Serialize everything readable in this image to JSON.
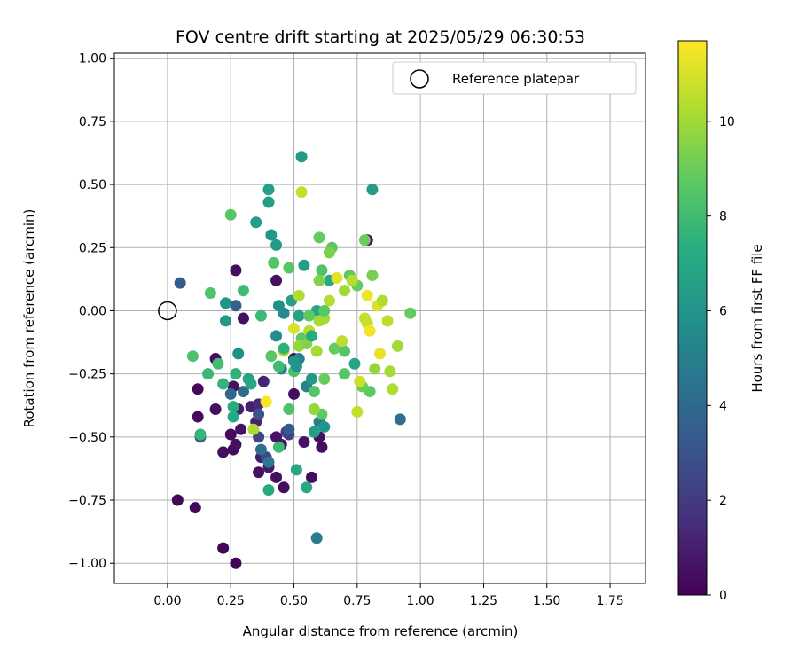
{
  "chart_data": {
    "type": "scatter",
    "title": "FOV centre drift starting at 2025/05/29 06:30:53",
    "xlabel": "Angular distance from reference (arcmin)",
    "ylabel": "Rotation from reference (arcmin)",
    "xlim": [
      -0.21,
      1.89
    ],
    "ylim": [
      -1.08,
      1.02
    ],
    "x_ticks": [
      0.0,
      0.25,
      0.5,
      0.75,
      1.0,
      1.25,
      1.5,
      1.75
    ],
    "x_tick_labels": [
      "0.00",
      "0.25",
      "0.50",
      "0.75",
      "1.00",
      "1.25",
      "1.50",
      "1.75"
    ],
    "y_ticks": [
      -1.0,
      -0.75,
      -0.5,
      -0.25,
      0.0,
      0.25,
      0.5,
      0.75,
      1.0
    ],
    "y_tick_labels": [
      "−1.00",
      "−0.75",
      "−0.50",
      "−0.25",
      "0.00",
      "0.25",
      "0.50",
      "0.75",
      "1.00"
    ],
    "grid": true,
    "legend": {
      "placement": "top-right",
      "entries": [
        {
          "label": "Reference platepar",
          "marker": "open-circle"
        }
      ]
    },
    "reference_point": {
      "x": 0.0,
      "y": 0.0
    },
    "colorbar": {
      "label": "Hours from first FF file",
      "colormap": "viridis",
      "range": [
        0,
        11.7
      ],
      "ticks": [
        0,
        2,
        4,
        6,
        8,
        10
      ],
      "tick_labels": [
        "0",
        "2",
        "4",
        "6",
        "8",
        "10"
      ]
    },
    "points": [
      {
        "x": 0.04,
        "y": -0.75,
        "hours": 0.2
      },
      {
        "x": 0.11,
        "y": -0.78,
        "hours": 0.2
      },
      {
        "x": 0.22,
        "y": -0.94,
        "hours": 0.2
      },
      {
        "x": 0.27,
        "y": -1.0,
        "hours": 0.1
      },
      {
        "x": 0.12,
        "y": -0.31,
        "hours": 0.2
      },
      {
        "x": 0.12,
        "y": -0.42,
        "hours": 0.3
      },
      {
        "x": 0.19,
        "y": -0.19,
        "hours": 0.4
      },
      {
        "x": 0.19,
        "y": -0.39,
        "hours": 0.5
      },
      {
        "x": 0.22,
        "y": -0.56,
        "hours": 0.4
      },
      {
        "x": 0.25,
        "y": -0.49,
        "hours": 0.3
      },
      {
        "x": 0.26,
        "y": -0.55,
        "hours": 0.3
      },
      {
        "x": 0.27,
        "y": -0.53,
        "hours": 0.5
      },
      {
        "x": 0.26,
        "y": -0.3,
        "hours": 0.5
      },
      {
        "x": 0.27,
        "y": 0.16,
        "hours": 0.4
      },
      {
        "x": 0.3,
        "y": -0.03,
        "hours": 0.5
      },
      {
        "x": 0.29,
        "y": -0.47,
        "hours": 0.6
      },
      {
        "x": 0.36,
        "y": -0.64,
        "hours": 0.5
      },
      {
        "x": 0.43,
        "y": 0.12,
        "hours": 0.6
      },
      {
        "x": 0.46,
        "y": -0.7,
        "hours": 0.4
      },
      {
        "x": 0.43,
        "y": -0.66,
        "hours": 0.5
      },
      {
        "x": 0.43,
        "y": -0.5,
        "hours": 0.6
      },
      {
        "x": 0.45,
        "y": -0.53,
        "hours": 0.7
      },
      {
        "x": 0.5,
        "y": -0.33,
        "hours": 0.4
      },
      {
        "x": 0.5,
        "y": -0.19,
        "hours": 0.5
      },
      {
        "x": 0.57,
        "y": -0.66,
        "hours": 0.4
      },
      {
        "x": 0.6,
        "y": -0.5,
        "hours": 0.5
      },
      {
        "x": 0.61,
        "y": -0.54,
        "hours": 0.4
      },
      {
        "x": 0.54,
        "y": -0.52,
        "hours": 0.6
      },
      {
        "x": 0.79,
        "y": 0.28,
        "hours": 0.3
      },
      {
        "x": 0.4,
        "y": -0.62,
        "hours": 0.8
      },
      {
        "x": 0.37,
        "y": -0.58,
        "hours": 0.9
      },
      {
        "x": 0.33,
        "y": -0.38,
        "hours": 1.0
      },
      {
        "x": 0.35,
        "y": -0.44,
        "hours": 1.1
      },
      {
        "x": 0.38,
        "y": -0.28,
        "hours": 1.2
      },
      {
        "x": 0.28,
        "y": -0.39,
        "hours": 1.0
      },
      {
        "x": 0.36,
        "y": -0.37,
        "hours": 1.4
      },
      {
        "x": 0.47,
        "y": -0.48,
        "hours": 2.0
      },
      {
        "x": 0.48,
        "y": -0.49,
        "hours": 2.3
      },
      {
        "x": 0.36,
        "y": -0.5,
        "hours": 2.4
      },
      {
        "x": 0.39,
        "y": -0.58,
        "hours": 2.6
      },
      {
        "x": 0.36,
        "y": -0.41,
        "hours": 3.0
      },
      {
        "x": 0.05,
        "y": 0.11,
        "hours": 3.4
      },
      {
        "x": 0.13,
        "y": -0.5,
        "hours": 3.5
      },
      {
        "x": 0.27,
        "y": 0.02,
        "hours": 3.6
      },
      {
        "x": 0.25,
        "y": -0.33,
        "hours": 3.8
      },
      {
        "x": 0.3,
        "y": -0.32,
        "hours": 4.0
      },
      {
        "x": 0.37,
        "y": -0.55,
        "hours": 4.2
      },
      {
        "x": 0.4,
        "y": -0.6,
        "hours": 4.6
      },
      {
        "x": 0.48,
        "y": -0.47,
        "hours": 3.3
      },
      {
        "x": 0.92,
        "y": -0.43,
        "hours": 4.3
      },
      {
        "x": 0.59,
        "y": -0.9,
        "hours": 4.9
      },
      {
        "x": 0.6,
        "y": -0.44,
        "hours": 5.0
      },
      {
        "x": 0.55,
        "y": -0.3,
        "hours": 5.2
      },
      {
        "x": 0.52,
        "y": -0.19,
        "hours": 5.1
      },
      {
        "x": 0.45,
        "y": -0.23,
        "hours": 5.4
      },
      {
        "x": 0.43,
        "y": -0.1,
        "hours": 5.6
      },
      {
        "x": 0.44,
        "y": 0.02,
        "hours": 5.8
      },
      {
        "x": 0.46,
        "y": -0.01,
        "hours": 5.5
      },
      {
        "x": 0.5,
        "y": -0.2,
        "hours": 6.0
      },
      {
        "x": 0.53,
        "y": 0.61,
        "hours": 6.3
      },
      {
        "x": 0.81,
        "y": 0.48,
        "hours": 6.4
      },
      {
        "x": 0.4,
        "y": 0.48,
        "hours": 6.5
      },
      {
        "x": 0.4,
        "y": 0.43,
        "hours": 6.5
      },
      {
        "x": 0.35,
        "y": 0.35,
        "hours": 6.4
      },
      {
        "x": 0.41,
        "y": 0.3,
        "hours": 6.2
      },
      {
        "x": 0.43,
        "y": 0.26,
        "hours": 6.3
      },
      {
        "x": 0.54,
        "y": 0.18,
        "hours": 6.4
      },
      {
        "x": 0.49,
        "y": 0.04,
        "hours": 6.6
      },
      {
        "x": 0.52,
        "y": -0.02,
        "hours": 6.7
      },
      {
        "x": 0.59,
        "y": 0.0,
        "hours": 6.9
      },
      {
        "x": 0.64,
        "y": 0.12,
        "hours": 7.0
      },
      {
        "x": 0.74,
        "y": -0.21,
        "hours": 6.8
      },
      {
        "x": 0.57,
        "y": -0.27,
        "hours": 6.2
      },
      {
        "x": 0.62,
        "y": -0.46,
        "hours": 6.1
      },
      {
        "x": 0.58,
        "y": -0.48,
        "hours": 6.5
      },
      {
        "x": 0.51,
        "y": -0.63,
        "hours": 6.9
      },
      {
        "x": 0.55,
        "y": -0.7,
        "hours": 7.0
      },
      {
        "x": 0.4,
        "y": -0.71,
        "hours": 7.1
      },
      {
        "x": 0.28,
        "y": -0.17,
        "hours": 5.8
      },
      {
        "x": 0.23,
        "y": 0.03,
        "hours": 6.0
      },
      {
        "x": 0.23,
        "y": -0.04,
        "hours": 6.2
      },
      {
        "x": 0.32,
        "y": -0.27,
        "hours": 6.7
      },
      {
        "x": 0.33,
        "y": -0.29,
        "hours": 7.0
      },
      {
        "x": 0.27,
        "y": -0.25,
        "hours": 7.5
      },
      {
        "x": 0.26,
        "y": -0.38,
        "hours": 7.2
      },
      {
        "x": 0.22,
        "y": -0.29,
        "hours": 7.6
      },
      {
        "x": 0.26,
        "y": -0.42,
        "hours": 7.0
      },
      {
        "x": 0.3,
        "y": 0.08,
        "hours": 8.0
      },
      {
        "x": 0.16,
        "y": -0.25,
        "hours": 7.8
      },
      {
        "x": 0.37,
        "y": -0.02,
        "hours": 7.9
      },
      {
        "x": 0.44,
        "y": -0.54,
        "hours": 7.9
      },
      {
        "x": 0.13,
        "y": -0.49,
        "hours": 7.7
      },
      {
        "x": 0.1,
        "y": -0.18,
        "hours": 8.3
      },
      {
        "x": 0.2,
        "y": -0.21,
        "hours": 8.1
      },
      {
        "x": 0.17,
        "y": 0.07,
        "hours": 8.4
      },
      {
        "x": 0.25,
        "y": 0.38,
        "hours": 8.6
      },
      {
        "x": 0.42,
        "y": 0.19,
        "hours": 8.5
      },
      {
        "x": 0.48,
        "y": 0.17,
        "hours": 8.6
      },
      {
        "x": 0.41,
        "y": -0.18,
        "hours": 8.6
      },
      {
        "x": 0.44,
        "y": -0.22,
        "hours": 8.0
      },
      {
        "x": 0.48,
        "y": -0.39,
        "hours": 8.4
      },
      {
        "x": 0.5,
        "y": -0.24,
        "hours": 8.3
      },
      {
        "x": 0.53,
        "y": -0.11,
        "hours": 8.7
      },
      {
        "x": 0.56,
        "y": -0.02,
        "hours": 8.8
      },
      {
        "x": 0.6,
        "y": 0.29,
        "hours": 8.9
      },
      {
        "x": 0.61,
        "y": 0.16,
        "hours": 8.4
      },
      {
        "x": 0.65,
        "y": 0.25,
        "hours": 8.7
      },
      {
        "x": 0.64,
        "y": 0.23,
        "hours": 9.3
      },
      {
        "x": 0.66,
        "y": -0.15,
        "hours": 8.9
      },
      {
        "x": 0.7,
        "y": -0.16,
        "hours": 8.5
      },
      {
        "x": 0.72,
        "y": 0.14,
        "hours": 8.8
      },
      {
        "x": 0.75,
        "y": 0.1,
        "hours": 8.9
      },
      {
        "x": 0.78,
        "y": 0.28,
        "hours": 9.0
      },
      {
        "x": 0.81,
        "y": 0.14,
        "hours": 9.2
      },
      {
        "x": 0.96,
        "y": -0.01,
        "hours": 8.9
      },
      {
        "x": 0.58,
        "y": -0.32,
        "hours": 8.5
      },
      {
        "x": 0.61,
        "y": -0.41,
        "hours": 8.8
      },
      {
        "x": 0.62,
        "y": -0.27,
        "hours": 8.9
      },
      {
        "x": 0.7,
        "y": -0.25,
        "hours": 8.6
      },
      {
        "x": 0.8,
        "y": -0.32,
        "hours": 8.8
      },
      {
        "x": 0.77,
        "y": -0.3,
        "hours": 9.0
      },
      {
        "x": 0.82,
        "y": -0.23,
        "hours": 9.8
      },
      {
        "x": 0.88,
        "y": -0.24,
        "hours": 10.1
      },
      {
        "x": 0.89,
        "y": -0.31,
        "hours": 10.3
      },
      {
        "x": 0.91,
        "y": -0.14,
        "hours": 10.0
      },
      {
        "x": 0.75,
        "y": -0.4,
        "hours": 10.6
      },
      {
        "x": 0.76,
        "y": -0.28,
        "hours": 10.8
      },
      {
        "x": 0.58,
        "y": -0.39,
        "hours": 9.8
      },
      {
        "x": 0.59,
        "y": -0.16,
        "hours": 10.1
      },
      {
        "x": 0.6,
        "y": -0.04,
        "hours": 10.2
      },
      {
        "x": 0.62,
        "y": -0.03,
        "hours": 10.0
      },
      {
        "x": 0.64,
        "y": 0.04,
        "hours": 10.4
      },
      {
        "x": 0.69,
        "y": -0.12,
        "hours": 10.5
      },
      {
        "x": 0.7,
        "y": 0.08,
        "hours": 10.0
      },
      {
        "x": 0.73,
        "y": 0.12,
        "hours": 10.4
      },
      {
        "x": 0.78,
        "y": -0.03,
        "hours": 10.6
      },
      {
        "x": 0.79,
        "y": -0.05,
        "hours": 10.7
      },
      {
        "x": 0.83,
        "y": 0.02,
        "hours": 11.0
      },
      {
        "x": 0.85,
        "y": 0.04,
        "hours": 10.3
      },
      {
        "x": 0.87,
        "y": -0.04,
        "hours": 10.5
      },
      {
        "x": 0.84,
        "y": -0.17,
        "hours": 11.3
      },
      {
        "x": 0.8,
        "y": -0.08,
        "hours": 11.5
      },
      {
        "x": 0.79,
        "y": 0.06,
        "hours": 11.4
      },
      {
        "x": 0.67,
        "y": 0.13,
        "hours": 11.2
      },
      {
        "x": 0.53,
        "y": 0.47,
        "hours": 10.6
      },
      {
        "x": 0.52,
        "y": 0.06,
        "hours": 10.3
      },
      {
        "x": 0.5,
        "y": -0.07,
        "hours": 11.0
      },
      {
        "x": 0.56,
        "y": -0.08,
        "hours": 10.4
      },
      {
        "x": 0.52,
        "y": -0.14,
        "hours": 9.8
      },
      {
        "x": 0.55,
        "y": -0.13,
        "hours": 9.5
      },
      {
        "x": 0.46,
        "y": -0.16,
        "hours": 10.6
      },
      {
        "x": 0.39,
        "y": -0.36,
        "hours": 11.6
      },
      {
        "x": 0.34,
        "y": -0.47,
        "hours": 10.3
      },
      {
        "x": 0.46,
        "y": -0.15,
        "hours": 7.5
      },
      {
        "x": 0.57,
        "y": -0.1,
        "hours": 7.2
      },
      {
        "x": 0.51,
        "y": -0.22,
        "hours": 6.0
      },
      {
        "x": 0.6,
        "y": 0.12,
        "hours": 9.4
      },
      {
        "x": 0.62,
        "y": 0.0,
        "hours": 8.6
      }
    ]
  }
}
